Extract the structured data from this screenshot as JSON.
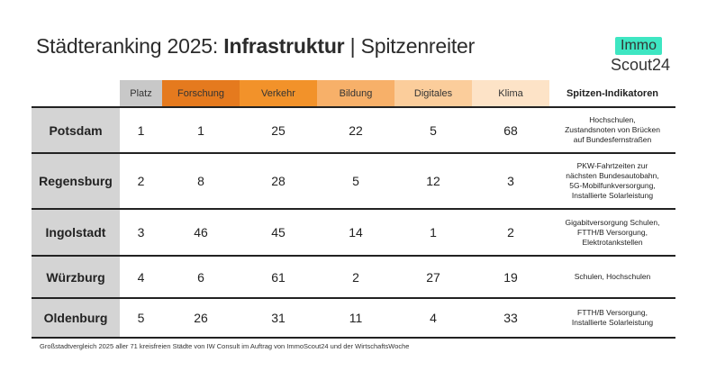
{
  "header": {
    "title_prefix": "Städteranking 2025: ",
    "title_bold": "Infrastruktur",
    "title_suffix": " | Spitzenreiter"
  },
  "logo": {
    "top": "Immo",
    "bottom": "Scout24",
    "accent_color": "#3ee6c2"
  },
  "table": {
    "columns": {
      "platz": "Platz",
      "forschung": "Forschung",
      "verkehr": "Verkehr",
      "bildung": "Bildung",
      "digitales": "Digitales",
      "klima": "Klima",
      "indikatoren": "Spitzen-Indikatoren"
    },
    "column_colors": {
      "platz": "#c8c8c8",
      "forschung": "#e57a1e",
      "verkehr": "#f2922a",
      "bildung": "#f7b069",
      "digitales": "#fbcd9b",
      "klima": "#fde3c7"
    },
    "rows": [
      {
        "city": "Potsdam",
        "platz": "1",
        "forschung": "1",
        "verkehr": "25",
        "bildung": "22",
        "digitales": "5",
        "klima": "68",
        "indikatoren": [
          "Hochschulen,",
          "Zustandsnoten von Brücken",
          "auf Bundesfernstraßen"
        ]
      },
      {
        "city": "Regensburg",
        "platz": "2",
        "forschung": "8",
        "verkehr": "28",
        "bildung": "5",
        "digitales": "12",
        "klima": "3",
        "indikatoren": [
          "PKW-Fahrtzeiten zur",
          "nächsten Bundesautobahn,",
          "5G-Mobilfunkversorgung,",
          "Installierte Solarleistung"
        ]
      },
      {
        "city": "Ingolstadt",
        "platz": "3",
        "forschung": "46",
        "verkehr": "45",
        "bildung": "14",
        "digitales": "1",
        "klima": "2",
        "indikatoren": [
          "Gigabitversorgung Schulen,",
          "FTTH/B Versorgung,",
          "Elektrotankstellen"
        ]
      },
      {
        "city": "Würzburg",
        "platz": "4",
        "forschung": "6",
        "verkehr": "61",
        "bildung": "2",
        "digitales": "27",
        "klima": "19",
        "indikatoren": [
          "Schulen, Hochschulen"
        ]
      },
      {
        "city": "Oldenburg",
        "platz": "5",
        "forschung": "26",
        "verkehr": "31",
        "bildung": "11",
        "digitales": "4",
        "klima": "33",
        "indikatoren": [
          "FTTH/B Versorgung,",
          "Installierte Solarleistung"
        ]
      }
    ]
  },
  "footnote": "Großstadtvergleich 2025 aller 71 kreisfreien Städte von IW Consult im Auftrag von ImmoScout24 und der WirtschaftsWoche"
}
